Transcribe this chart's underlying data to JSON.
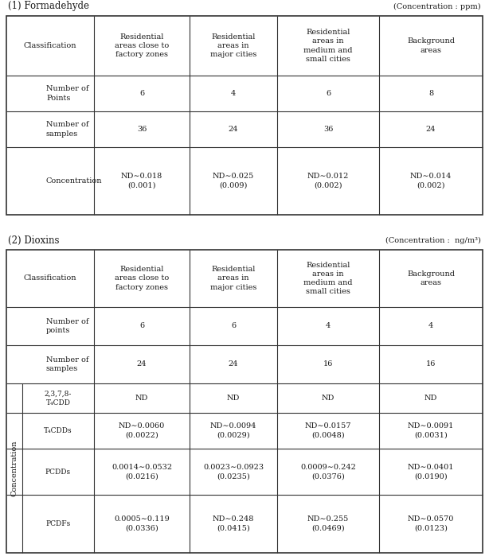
{
  "title1": "(1) Formadehyde",
  "unit1": "(Concentration : ppm)",
  "title2": "(2) Dioxins",
  "unit2": "(Concentration :  ng/m³)",
  "table1": {
    "headers": [
      "Classification",
      "Residential\nareas close to\nfactory zones",
      "Residential\nareas in\nmajor cities",
      "Residential\nareas in\nmedium and\nsmall cities",
      "Background\nareas"
    ],
    "rows": [
      [
        "Number of\nPoints",
        "6",
        "4",
        "6",
        "8"
      ],
      [
        "Number of\nsamples",
        "36",
        "24",
        "36",
        "24"
      ],
      [
        "Concentration",
        "ND∼0.018\n(0.001)",
        "ND∼0.025\n(0.009)",
        "ND∼0.012\n(0.002)",
        "ND∼0.014\n(0.002)"
      ]
    ]
  },
  "table2": {
    "headers": [
      "Classification",
      "Residential\nareas close to\nfactory zones",
      "Residential\nareas in\nmajor cities",
      "Residential\nareas in\nmedium and\nsmall cities",
      "Background\nareas"
    ],
    "simple_rows": [
      [
        "Number of\npoints",
        "6",
        "6",
        "4",
        "4"
      ],
      [
        "Number of\nsamples",
        "24",
        "24",
        "16",
        "16"
      ]
    ],
    "conc_label": "Concentration",
    "conc_subrows": [
      [
        "2,3,7,8-\nT₄CDD",
        "ND",
        "ND",
        "ND",
        "ND"
      ],
      [
        "T₄CDDs",
        "ND∼0.0060\n(0.0022)",
        "ND∼0.0094\n(0.0029)",
        "ND∼0.0157\n(0.0048)",
        "ND∼0.0091\n(0.0031)"
      ],
      [
        "PCDDs",
        "0.0014∼0.0532\n(0.0216)",
        "0.0023∼0.0923\n(0.0235)",
        "0.0009∼0.242\n(0.0376)",
        "ND∼0.0401\n(0.0190)"
      ],
      [
        "PCDFs",
        "0.0005∼0.119\n(0.0336)",
        "ND∼0.248\n(0.0415)",
        "ND∼0.255\n(0.0469)",
        "ND∼0.0570\n(0.0123)"
      ]
    ]
  },
  "bg_color": "#ffffff",
  "text_color": "#1a1a1a",
  "line_color": "#333333",
  "font_size": 7.0,
  "title_font_size": 8.5
}
